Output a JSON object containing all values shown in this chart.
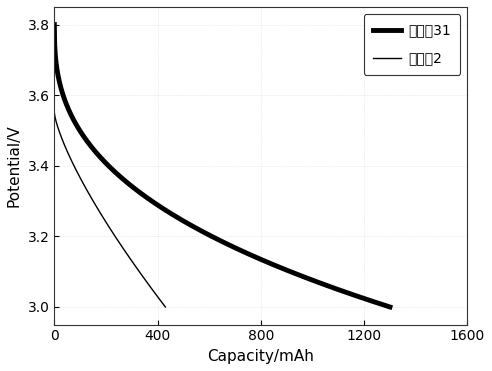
{
  "xlabel": "Capacity/mAh",
  "ylabel": "Potential/V",
  "xlim": [
    0,
    1600
  ],
  "ylim": [
    2.95,
    3.85
  ],
  "xticks": [
    0,
    400,
    800,
    1200,
    1600
  ],
  "yticks": [
    3.0,
    3.2,
    3.4,
    3.6,
    3.8
  ],
  "legend1_label": "实施例31",
  "legend2_label": "对比例2",
  "line1_color": "#000000",
  "line2_color": "#000000",
  "line1_lw": 3.5,
  "line2_lw": 1.0,
  "bg_color": "#ffffff",
  "fig_color": "#ffffff",
  "figsize": [
    4.92,
    3.71
  ],
  "dpi": 100,
  "curve1_x_end": 1300,
  "curve1_y_start": 3.8,
  "curve1_y_end": 3.0,
  "curve2_x_end": 430,
  "curve2_y_start": 3.55,
  "curve2_y_end": 3.0
}
